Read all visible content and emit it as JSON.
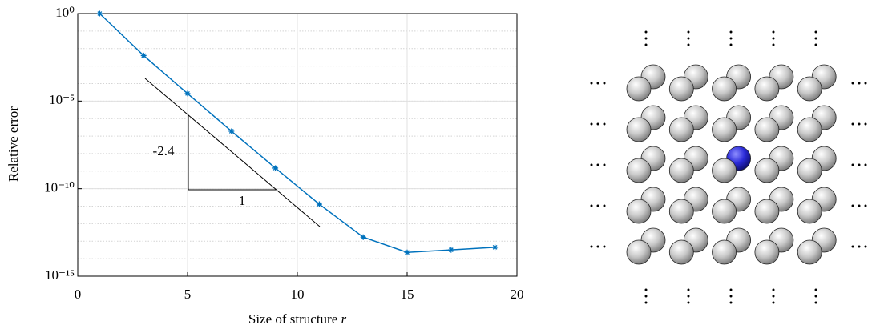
{
  "chart_data": {
    "type": "line",
    "log_y": true,
    "grid": true,
    "minor_grid": true,
    "color": "#0072bd",
    "xlabel": "Size of structure",
    "xlabel_var": "r",
    "ylabel": "Relative error",
    "series": [
      {
        "x": [
          1,
          3,
          5,
          7,
          9,
          11,
          13,
          15,
          17,
          19
        ],
        "values": [
          1,
          0.004,
          2.7e-05,
          1.9e-07,
          1.5e-09,
          1.3e-11,
          1.7e-13,
          2.3e-14,
          3.2e-14,
          4.5e-14
        ]
      }
    ],
    "xlim": [
      0,
      20
    ],
    "xticks": [
      0,
      5,
      10,
      15,
      20
    ],
    "ylim": [
      1e-15,
      1
    ],
    "yticks": [
      {
        "value": 1,
        "label": "10⁰"
      },
      {
        "value": 1e-05,
        "label": "10⁻⁵"
      },
      {
        "value": 1e-10,
        "label": "10⁻¹⁰"
      },
      {
        "value": 1e-15,
        "label": "10⁻¹⁵"
      }
    ],
    "annotations": [
      "-2.4",
      "1"
    ]
  }
}
